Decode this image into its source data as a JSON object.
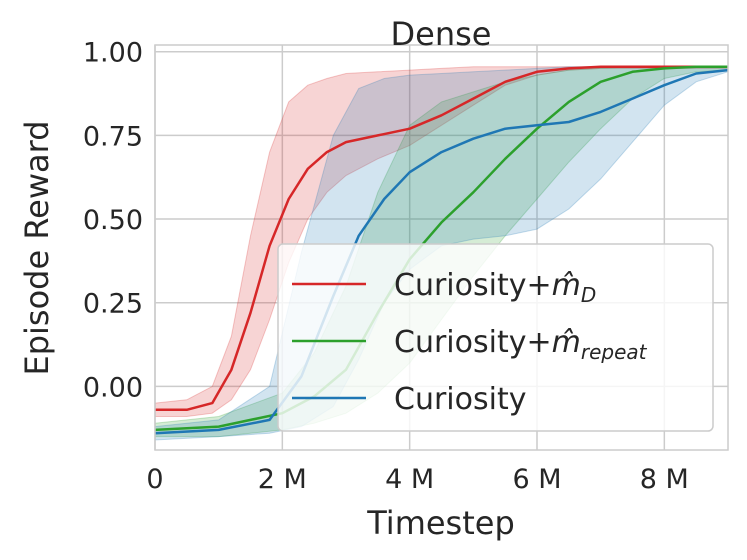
{
  "chart_data": {
    "type": "line",
    "title": "Dense",
    "xlabel": "Timestep",
    "ylabel": "Episode Reward",
    "xlim": [
      0,
      9000000
    ],
    "ylim": [
      -0.19,
      1.02
    ],
    "x_ticks": [
      0,
      2000000,
      4000000,
      6000000,
      8000000
    ],
    "x_tick_labels": [
      "0",
      "2 M",
      "4 M",
      "6 M",
      "8 M"
    ],
    "y_ticks": [
      0.0,
      0.25,
      0.5,
      0.75,
      1.0
    ],
    "y_tick_labels": [
      "0.00",
      "0.25",
      "0.50",
      "0.75",
      "1.00"
    ],
    "grid": true,
    "legend_position": "lower-right",
    "series": [
      {
        "name": "Curiosity+m̂_D",
        "legend_main": "Curiosity+",
        "legend_math": "m̂",
        "legend_sub": "D",
        "color": "#d62728",
        "x": [
          0,
          0.5,
          0.9,
          1.2,
          1.5,
          1.8,
          2.1,
          2.4,
          2.7,
          3.0,
          3.5,
          4.0,
          4.5,
          5.0,
          5.5,
          6.0,
          6.5,
          7.0,
          8.0,
          9.0
        ],
        "mean": [
          -0.07,
          -0.07,
          -0.05,
          0.05,
          0.22,
          0.42,
          0.56,
          0.65,
          0.7,
          0.73,
          0.75,
          0.77,
          0.81,
          0.86,
          0.91,
          0.94,
          0.95,
          0.955,
          0.955,
          0.955
        ],
        "lower": [
          -0.09,
          -0.09,
          -0.08,
          -0.04,
          0.05,
          0.2,
          0.37,
          0.5,
          0.58,
          0.63,
          0.68,
          0.72,
          0.78,
          0.84,
          0.9,
          0.93,
          0.945,
          0.95,
          0.95,
          0.95
        ],
        "upper": [
          -0.05,
          -0.04,
          0.0,
          0.15,
          0.45,
          0.7,
          0.85,
          0.9,
          0.92,
          0.935,
          0.94,
          0.945,
          0.95,
          0.955,
          0.955,
          0.955,
          0.955,
          0.955,
          0.955,
          0.955
        ]
      },
      {
        "name": "Curiosity+m̂_repeat",
        "legend_main": "Curiosity+",
        "legend_math": "m̂",
        "legend_sub": "repeat",
        "color": "#2ca02c",
        "x": [
          0,
          1.0,
          2.0,
          2.5,
          3.0,
          3.5,
          4.0,
          4.5,
          5.0,
          5.5,
          6.0,
          6.5,
          7.0,
          7.5,
          8.0,
          8.5,
          9.0
        ],
        "mean": [
          -0.13,
          -0.12,
          -0.08,
          -0.03,
          0.05,
          0.22,
          0.38,
          0.49,
          0.58,
          0.68,
          0.77,
          0.85,
          0.91,
          0.94,
          0.95,
          0.955,
          0.955
        ],
        "lower": [
          -0.15,
          -0.15,
          -0.13,
          -0.11,
          -0.08,
          -0.02,
          0.07,
          0.2,
          0.33,
          0.45,
          0.56,
          0.67,
          0.77,
          0.86,
          0.92,
          0.94,
          0.945
        ],
        "upper": [
          -0.11,
          -0.09,
          -0.02,
          0.1,
          0.3,
          0.58,
          0.78,
          0.85,
          0.88,
          0.91,
          0.93,
          0.945,
          0.95,
          0.955,
          0.955,
          0.955,
          0.955
        ]
      },
      {
        "name": "Curiosity",
        "legend_main": "Curiosity",
        "legend_math": "",
        "legend_sub": "",
        "color": "#1f77b4",
        "x": [
          0,
          1.0,
          1.8,
          2.3,
          2.8,
          3.2,
          3.6,
          4.0,
          4.5,
          5.0,
          5.5,
          6.0,
          6.5,
          7.0,
          7.5,
          8.0,
          8.5,
          9.0
        ],
        "mean": [
          -0.14,
          -0.13,
          -0.1,
          0.03,
          0.27,
          0.45,
          0.56,
          0.64,
          0.7,
          0.74,
          0.77,
          0.78,
          0.79,
          0.82,
          0.86,
          0.9,
          0.935,
          0.945
        ],
        "lower": [
          -0.16,
          -0.15,
          -0.14,
          -0.12,
          -0.06,
          0.08,
          0.25,
          0.35,
          0.42,
          0.44,
          0.45,
          0.47,
          0.53,
          0.62,
          0.73,
          0.84,
          0.91,
          0.94
        ],
        "upper": [
          -0.12,
          -0.1,
          0.0,
          0.4,
          0.75,
          0.89,
          0.92,
          0.93,
          0.935,
          0.94,
          0.945,
          0.95,
          0.955,
          0.955,
          0.955,
          0.955,
          0.955,
          0.955
        ]
      }
    ]
  }
}
